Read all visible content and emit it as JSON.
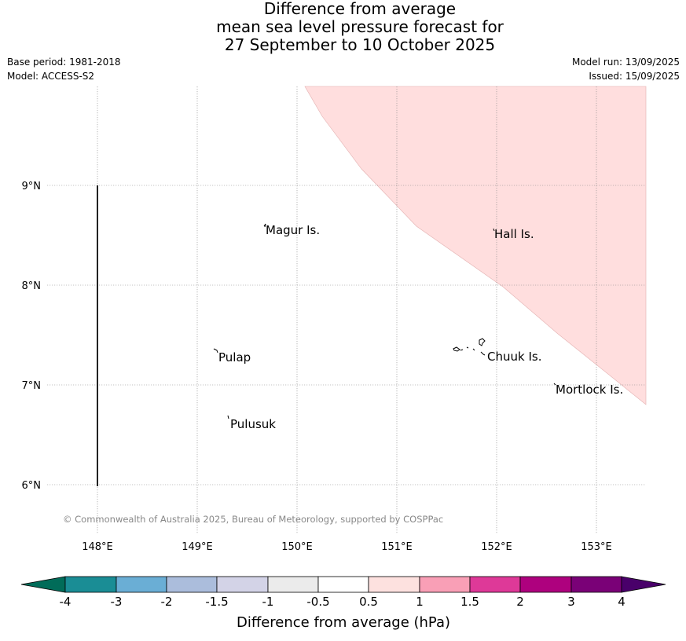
{
  "title": {
    "line1": "Difference from average",
    "line2": "mean sea level pressure forecast for",
    "line3": "27 September to 10 October 2025"
  },
  "meta": {
    "base_period": "Base period: 1981-2018",
    "model": "Model: ACCESS-S2",
    "model_run": "Model run: 13/09/2025",
    "issued": "Issued: 15/09/2025"
  },
  "map": {
    "lon_ticks": [
      "148°E",
      "149°E",
      "150°E",
      "151°E",
      "152°E",
      "153°E"
    ],
    "lat_ticks": [
      "9°N",
      "8°N",
      "7°N",
      "6°N"
    ],
    "shading_color": "#ffdede",
    "places": [
      "Magur Is.",
      "Hall Is.",
      "Pulap",
      "Chuuk Is.",
      "Mortlock Is.",
      "Pulusuk"
    ],
    "copyright": "© Commonwealth of Australia 2025, Bureau of Meteorology, supported by COSPPac"
  },
  "colorbar": {
    "ticks": [
      "-4",
      "-3",
      "-2",
      "-1.5",
      "-1",
      "-0.5",
      "0.5",
      "1",
      "1.5",
      "2",
      "3",
      "4"
    ],
    "colors": [
      "#1a8d95",
      "#6aaed5",
      "#abbddc",
      "#d3d3e7",
      "#ebebeb",
      "#ffffff",
      "#fde1df",
      "#f99fb6",
      "#de3998",
      "#ae017e",
      "#7a0177"
    ],
    "low_extend_color": "#016c59",
    "high_extend_color": "#49006a",
    "label": "Difference from average (hPa)"
  }
}
